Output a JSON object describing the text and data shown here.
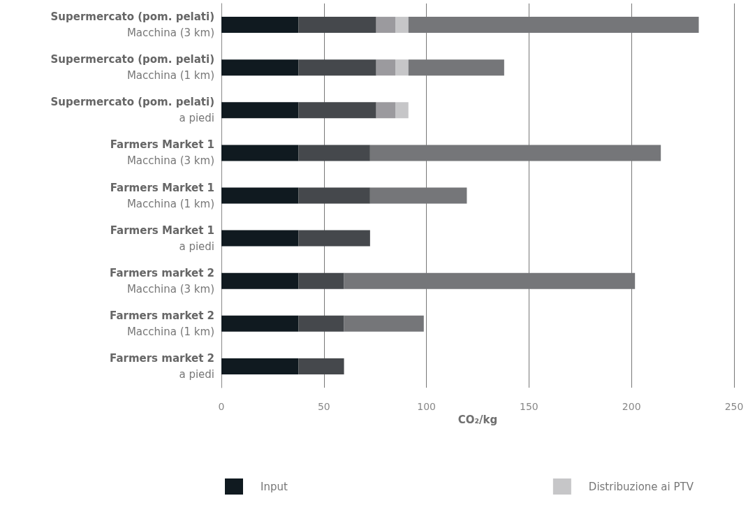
{
  "chart_data": {
    "type": "bar",
    "orientation": "horizontal",
    "stacked": true,
    "xlabel": "CO₂/kg",
    "categories": [
      "Supermercato (pom. pelati)\nMacchina (3 km)",
      "Supermercato (pom. pelati)\nMacchina (1 km)",
      "Supermercato (pom. pelati)\na piedi",
      "Farmers Market 1\nMacchina (3 km)",
      "Farmers Market 1\nMacchina (1 km)",
      "Farmers Market 1\na piedi",
      "Farmers market 2\nMacchina (3 km)",
      "Farmers market 2\nMacchina (1 km)",
      "Farmers market 2\na piedi"
    ],
    "series": [
      {
        "name": "Input",
        "color": "#101a20",
        "values": [
          37.6,
          37.6,
          37.6,
          37.6,
          37.6,
          37.6,
          37.6,
          37.6,
          37.6
        ]
      },
      {
        "color": "#45484c",
        "values": [
          37.9,
          37.9,
          37.9,
          34.9,
          34.9,
          34.9,
          22.2,
          22.2,
          22.2
        ]
      },
      {
        "color": "#9b9a9e",
        "values": [
          9.3,
          9.3,
          9.3,
          null,
          null,
          null,
          null,
          null,
          null
        ]
      },
      {
        "name": "Distribuzione ai PTV",
        "color": "#c6c6c8",
        "values": [
          6.4,
          6.4,
          6.4,
          null,
          null,
          null,
          null,
          null,
          null
        ]
      },
      {
        "color": "#757679",
        "values": [
          141.6,
          46.7,
          null,
          141.8,
          47.2,
          null,
          141.9,
          38.9,
          null
        ]
      }
    ],
    "xlim": [
      0,
      250
    ],
    "xticks": [
      0,
      50,
      100,
      150,
      200,
      250
    ],
    "grid": "x",
    "legend": "bottom"
  }
}
